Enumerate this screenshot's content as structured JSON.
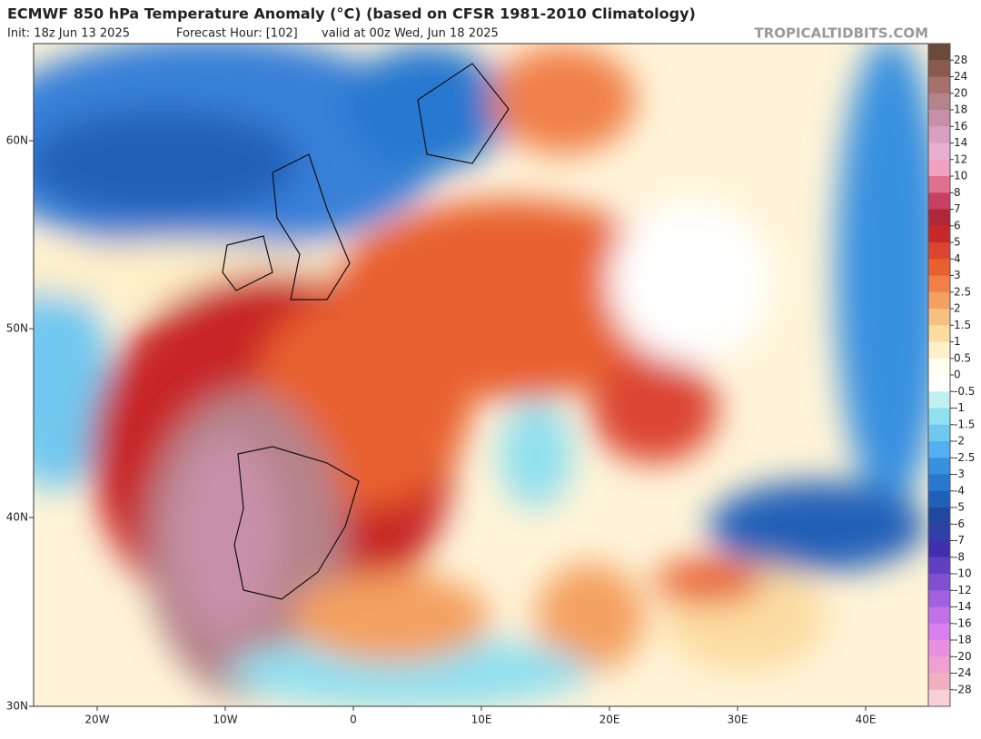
{
  "header": {
    "title": "ECMWF 850 hPa Temperature Anomaly (°C) (based on CFSR 1981-2010 Climatology)",
    "init": "Init: 18z Jun 13 2025",
    "forecast_hour": "Forecast Hour: [102]",
    "valid": "valid at 00z Wed, Jun 18 2025",
    "site": "TROPICALTIDBITS.COM"
  },
  "map": {
    "lat_labels": [
      "60N",
      "50N",
      "40N",
      "30N"
    ],
    "lon_labels": [
      "20W",
      "10W",
      "0",
      "10E",
      "20E",
      "30E",
      "40E"
    ]
  },
  "colorbar": {
    "labels": [
      "28",
      "24",
      "20",
      "18",
      "16",
      "14",
      "12",
      "10",
      "8",
      "7",
      "6",
      "5",
      "4",
      "3",
      "2.5",
      "2",
      "1.5",
      "1",
      "0.5",
      "0",
      "-0.5",
      "-1",
      "-1.5",
      "-2",
      "-2.5",
      "-3",
      "-4",
      "-5",
      "-6",
      "-7",
      "-8",
      "-10",
      "-12",
      "-14",
      "-16",
      "-18",
      "-20",
      "-24",
      "-28"
    ],
    "colors": [
      "#6b4a3a",
      "#8a5a50",
      "#a8706a",
      "#b5838a",
      "#c890a8",
      "#d8a0c0",
      "#e8b0d0",
      "#f0a0c0",
      "#e07090",
      "#c84060",
      "#b02838",
      "#c82828",
      "#dc4430",
      "#e8602e",
      "#f08048",
      "#f4a060",
      "#f8c080",
      "#fcdca0",
      "#fff0c8",
      "#fffff0",
      "#ffffff",
      "#c0f0f0",
      "#90e0f0",
      "#70c8f0",
      "#50b0f0",
      "#3890e0",
      "#2878d0",
      "#2060b8",
      "#2048a0",
      "#3040a8",
      "#4030b0",
      "#6040c0",
      "#8050d0",
      "#a060e0",
      "#c070e8",
      "#d880f0",
      "#e890e0",
      "#f0a0d0",
      "#f0b0c0",
      "#f8d0d8"
    ]
  }
}
